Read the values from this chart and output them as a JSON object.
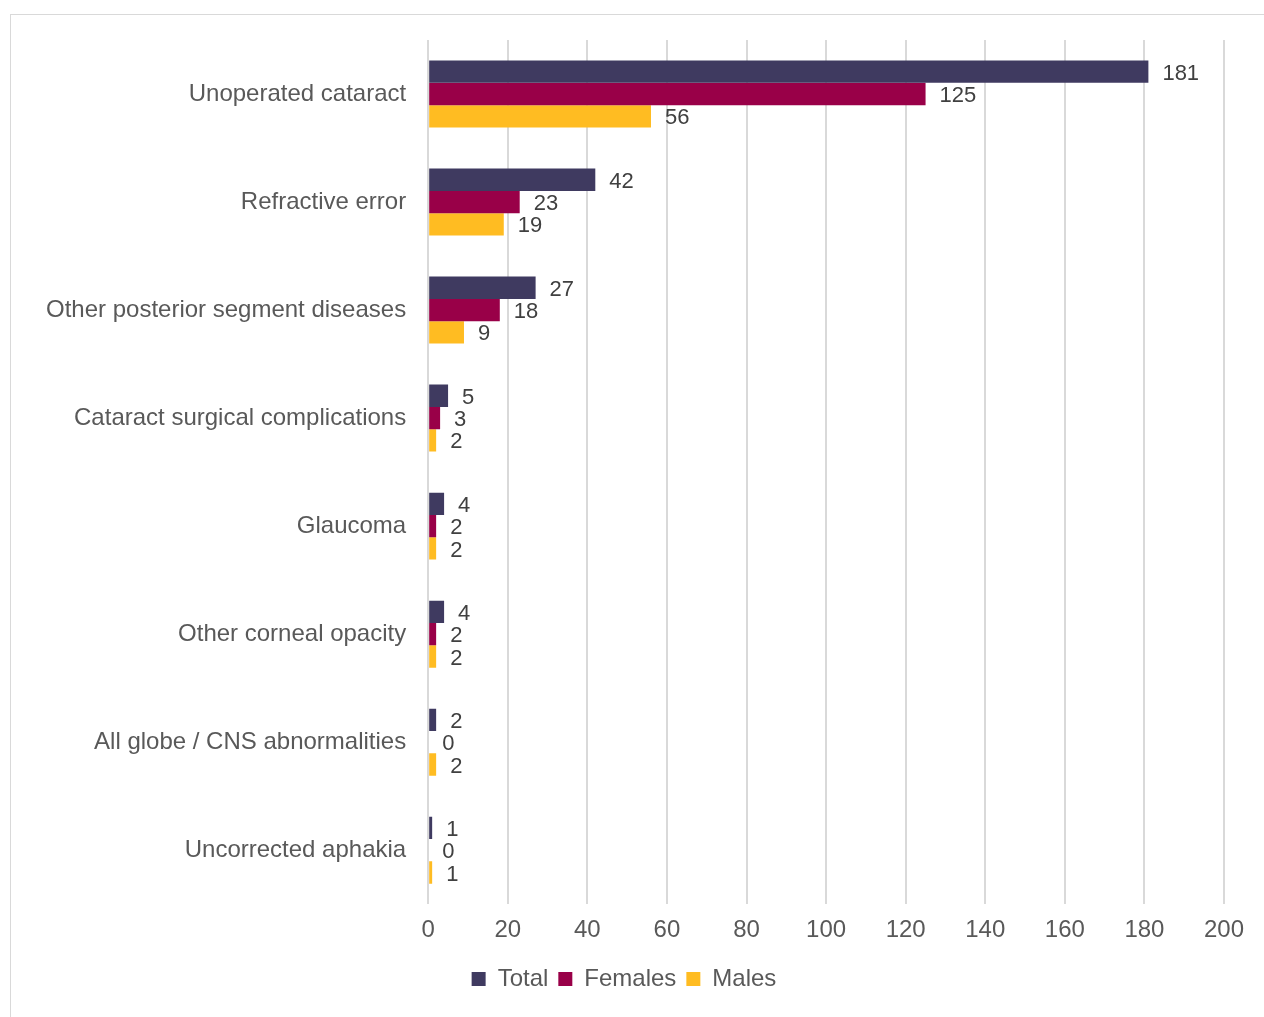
{
  "chart_data": {
    "type": "bar",
    "orientation": "horizontal",
    "categories": [
      "Unoperated cataract",
      "Refractive error",
      "Other posterior segment diseases",
      "Cataract surgical complications",
      "Glaucoma",
      "Other corneal opacity",
      "All globe / CNS abnormalities",
      "Uncorrected aphakia"
    ],
    "series": [
      {
        "name": "Total",
        "color": "#3f3a60",
        "values": [
          181,
          42,
          27,
          5,
          4,
          4,
          2,
          1
        ]
      },
      {
        "name": "Females",
        "color": "#990048",
        "values": [
          125,
          23,
          18,
          3,
          2,
          2,
          0,
          0
        ]
      },
      {
        "name": "Males",
        "color": "#ffbc22",
        "values": [
          56,
          19,
          9,
          2,
          2,
          2,
          2,
          1
        ]
      }
    ],
    "xlim": [
      0,
      200
    ],
    "xticks": [
      0,
      20,
      40,
      60,
      80,
      100,
      120,
      140,
      160,
      180,
      200
    ],
    "grid": "x",
    "legend": "bottom",
    "data_labels": true
  }
}
